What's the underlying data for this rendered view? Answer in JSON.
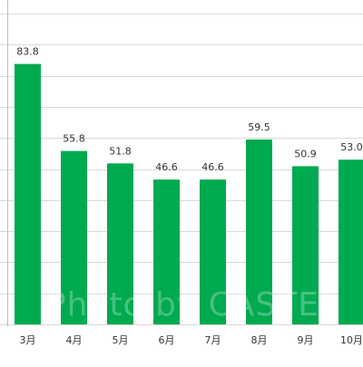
{
  "chart_data": {
    "type": "bar",
    "categories": [
      "3月",
      "4月",
      "5月",
      "6月",
      "7月",
      "8月",
      "9月",
      "10月"
    ],
    "values": [
      83.8,
      55.8,
      51.8,
      46.6,
      46.6,
      59.5,
      50.9,
      53.0
    ],
    "value_labels": [
      "83.8",
      "55.8",
      "51.8",
      "46.6",
      "46.6",
      "59.5",
      "50.9",
      "53.0"
    ],
    "ylim": [
      0,
      100
    ],
    "grid": true,
    "bar_color": "#00aa4f",
    "grid_color": "#d9d9d9",
    "text_color": "#333333"
  },
  "watermark": "Photo by CASTEL"
}
